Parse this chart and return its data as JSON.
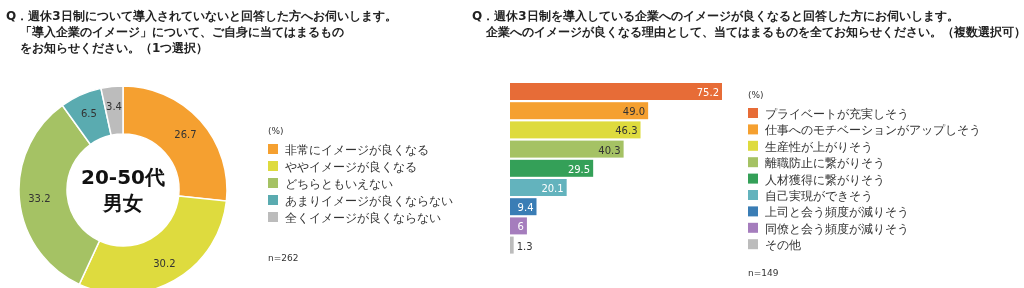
{
  "chart_data": [
    {
      "type": "donut",
      "title": "Q．週休3日制について導入されていないと回答した方へお伺いします。",
      "subtitle": "「導入企業のイメージ」について、ご自身に当てはまるものをお知らせください。（1つ選択）",
      "legend_title": "(%)",
      "legend": "right",
      "data_labels": true,
      "categories": [
        "非常にイメージが良くなる",
        "ややイメージが良くなる",
        "どちらともいえない",
        "あまりイメージが良くならない",
        "全くイメージが良くならない"
      ],
      "values": [
        26.7,
        30.2,
        33.2,
        6.5,
        3.4
      ],
      "colors": [
        "#f5a030",
        "#dedb3e",
        "#a5c264",
        "#5aabb0",
        "#bcbcbc"
      ],
      "annotations": [
        "20-50代男女",
        "n=262"
      ]
    },
    {
      "type": "bar",
      "orientation": "horizontal",
      "title": "Q．週休3日制を導入している企業へのイメージが良くなると回答した方にお伺いします。",
      "subtitle": "企業へのイメージが良くなる理由として、当てはまるものを全てお知らせください。（複数選択可）",
      "legend_title": "(%)",
      "legend": "right",
      "categories": [
        null
      ],
      "series": [
        {
          "name": "プライベートが充実しそう",
          "color": "#e76c37",
          "values": [
            75.2
          ],
          "value_labels": [
            "75.2"
          ]
        },
        {
          "name": "仕事へのモチベーションがアップしそう",
          "color": "#f5a030",
          "values": [
            49.0
          ],
          "value_labels": [
            "49.0"
          ]
        },
        {
          "name": "生産性が上がりそう",
          "color": "#dedb3e",
          "values": [
            46.3
          ],
          "value_labels": [
            "46.3"
          ]
        },
        {
          "name": "離職防止に繋がりそう",
          "color": "#a5c264",
          "values": [
            40.3
          ],
          "value_labels": [
            "40.3"
          ]
        },
        {
          "name": "人材獲得に繋がりそう",
          "color": "#34a058",
          "values": [
            29.5
          ],
          "value_labels": [
            "29.5"
          ]
        },
        {
          "name": "自己実現ができそう",
          "color": "#63b3bd",
          "values": [
            20.1
          ],
          "value_labels": [
            "20.1"
          ]
        },
        {
          "name": "上司と会う頻度が減りそう",
          "color": "#3a7db5",
          "values": [
            9.4
          ],
          "value_labels": [
            "9.4"
          ]
        },
        {
          "name": "同僚と会う頻度が減りそう",
          "color": "#a57dbd",
          "values": [
            6
          ],
          "value_labels": [
            "6"
          ]
        },
        {
          "name": "その他",
          "color": "#bcbcbc",
          "values": [
            1.3
          ],
          "value_labels": [
            "1.3"
          ]
        }
      ],
      "annotations": [
        "n=149"
      ]
    }
  ]
}
